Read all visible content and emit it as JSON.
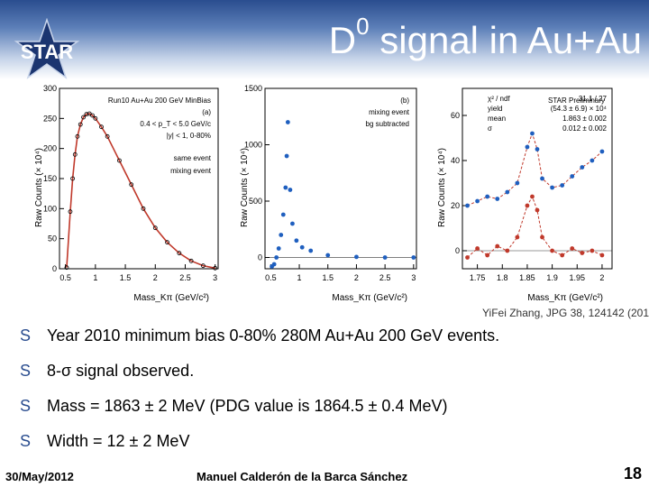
{
  "header": {
    "title_main": "D",
    "title_sup": "0",
    "title_rest": " signal in Au+Au",
    "logo_text": "STAR"
  },
  "chart_data": [
    {
      "type": "scatter",
      "panel": "left",
      "xlabel": "Mass_Kπ (GeV/c²)",
      "ylabel": "Raw Counts (× 10⁴)",
      "xlim": [
        0.4,
        3.05
      ],
      "ylim": [
        0,
        300
      ],
      "xticks": [
        "0.5",
        "1",
        "1.5",
        "2",
        "2.5",
        "3"
      ],
      "yticks": [
        "0",
        "50",
        "100",
        "150",
        "200",
        "250",
        "300"
      ],
      "annotations": [
        "Run10 Au+Au 200 GeV MinBias",
        "(a)",
        "0.4 < p_T < 5.0 GeV/c",
        "|y| < 1, 0-80%"
      ],
      "legend": [
        "same event",
        "mixing event"
      ],
      "series": [
        {
          "name": "same event",
          "x": [
            0.52,
            0.58,
            0.62,
            0.66,
            0.7,
            0.75,
            0.8,
            0.85,
            0.9,
            0.95,
            1.0,
            1.1,
            1.2,
            1.4,
            1.6,
            1.8,
            2.0,
            2.2,
            2.4,
            2.6,
            2.8,
            3.0
          ],
          "y": [
            2,
            95,
            150,
            190,
            220,
            240,
            252,
            257,
            258,
            255,
            250,
            236,
            220,
            180,
            140,
            100,
            68,
            44,
            26,
            13,
            5,
            1
          ]
        }
      ]
    },
    {
      "type": "scatter",
      "panel": "middle",
      "xlabel": "Mass_Kπ (GeV/c²)",
      "ylabel": "Raw Counts (× 10⁴)",
      "xlim": [
        0.4,
        3.05
      ],
      "ylim": [
        -100,
        1500
      ],
      "xticks": [
        "0.5",
        "1",
        "1.5",
        "2",
        "2.5",
        "3"
      ],
      "yticks": [
        "0",
        "500",
        "1000",
        "1500"
      ],
      "annotations": [
        "(b)",
        "mixing event",
        "bg subtracted"
      ],
      "series": [
        {
          "name": "",
          "x": [
            0.52,
            0.56,
            0.6,
            0.64,
            0.68,
            0.72,
            0.76,
            0.78,
            0.8,
            0.84,
            0.88,
            0.95,
            1.05,
            1.2,
            1.5,
            2.0,
            2.5,
            3.0
          ],
          "y": [
            -80,
            -60,
            0,
            80,
            200,
            380,
            620,
            900,
            1200,
            600,
            300,
            150,
            90,
            60,
            20,
            5,
            0,
            0
          ]
        }
      ]
    },
    {
      "type": "scatter",
      "panel": "right",
      "xlabel": "Mass_Kπ (GeV/c²)",
      "ylabel": "Raw Counts (× 10⁴)",
      "xlim": [
        1.72,
        2.02
      ],
      "ylim": [
        -8,
        72
      ],
      "xticks": [
        "1.75",
        "1.8",
        "1.85",
        "1.9",
        "1.95",
        "2"
      ],
      "yticks": [
        "0",
        "20",
        "40",
        "60"
      ],
      "annotations": [
        "STAR Preliminary"
      ],
      "stats": [
        [
          "χ² / ndf",
          "31.1 / 27"
        ],
        [
          "yield",
          "(54.3 ± 6.9) × 10⁴"
        ],
        [
          "mean",
          "1.863 ± 0.002"
        ],
        [
          "σ",
          "0.012 ± 0.002"
        ]
      ],
      "series": [
        {
          "name": "",
          "x": [
            1.73,
            1.75,
            1.77,
            1.79,
            1.81,
            1.83,
            1.85,
            1.86,
            1.87,
            1.88,
            1.9,
            1.92,
            1.94,
            1.96,
            1.98,
            2.0
          ],
          "y": [
            20,
            22,
            24,
            23,
            26,
            30,
            46,
            52,
            45,
            32,
            28,
            29,
            33,
            37,
            40,
            44
          ]
        },
        {
          "name": "",
          "x": [
            1.73,
            1.75,
            1.77,
            1.79,
            1.81,
            1.83,
            1.85,
            1.86,
            1.87,
            1.88,
            1.9,
            1.92,
            1.94,
            1.96,
            1.98,
            2.0
          ],
          "y": [
            -3,
            1,
            -2,
            2,
            0,
            6,
            20,
            24,
            18,
            6,
            0,
            -2,
            1,
            -1,
            0,
            -2
          ]
        }
      ]
    }
  ],
  "caption": "YiFei Zhang, JPG 38, 124142 (201",
  "bullets": [
    "Year 2010 minimum bias 0-80% 280M Au+Au 200 GeV events.",
    "8-σ signal observed.",
    "Mass = 1863 ± 2 MeV (PDG value is 1864.5 ± 0.4 MeV)",
    "Width = 12 ± 2 MeV"
  ],
  "bullet_mark": "S",
  "footer": {
    "date": "30/May/2012",
    "author": "Manuel Calderón de la Barca Sánchez",
    "page": "18"
  },
  "colors": {
    "accent": "#2a4d8f",
    "fit": "#c0392b",
    "points_blue": "#1f5fbf",
    "points_red": "#c0392b"
  }
}
